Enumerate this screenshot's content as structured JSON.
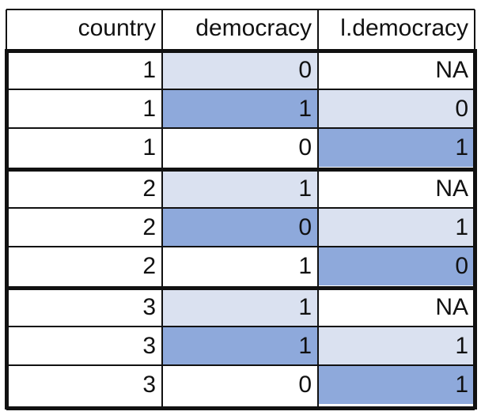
{
  "table": {
    "headers": [
      "country",
      "democracy",
      "l.democracy"
    ],
    "groups": [
      {
        "rows": [
          {
            "country": "1",
            "democracy": "0",
            "l_democracy": "NA",
            "democracy_fill": "light",
            "l_democracy_fill": "none"
          },
          {
            "country": "1",
            "democracy": "1",
            "l_democracy": "0",
            "democracy_fill": "dark",
            "l_democracy_fill": "light"
          },
          {
            "country": "1",
            "democracy": "0",
            "l_democracy": "1",
            "democracy_fill": "none",
            "l_democracy_fill": "dark"
          }
        ]
      },
      {
        "rows": [
          {
            "country": "2",
            "democracy": "1",
            "l_democracy": "NA",
            "democracy_fill": "light",
            "l_democracy_fill": "none"
          },
          {
            "country": "2",
            "democracy": "0",
            "l_democracy": "1",
            "democracy_fill": "dark",
            "l_democracy_fill": "light"
          },
          {
            "country": "2",
            "democracy": "1",
            "l_democracy": "0",
            "democracy_fill": "none",
            "l_democracy_fill": "dark"
          }
        ]
      },
      {
        "rows": [
          {
            "country": "3",
            "democracy": "1",
            "l_democracy": "NA",
            "democracy_fill": "light",
            "l_democracy_fill": "none"
          },
          {
            "country": "3",
            "democracy": "1",
            "l_democracy": "1",
            "democracy_fill": "dark",
            "l_democracy_fill": "light"
          },
          {
            "country": "3",
            "democracy": "0",
            "l_democracy": "1",
            "democracy_fill": "none",
            "l_democracy_fill": "dark"
          }
        ]
      }
    ]
  },
  "colors": {
    "light": "#dae1f0",
    "dark": "#8ea9db",
    "none": "#ffffff",
    "border": "#111111"
  }
}
